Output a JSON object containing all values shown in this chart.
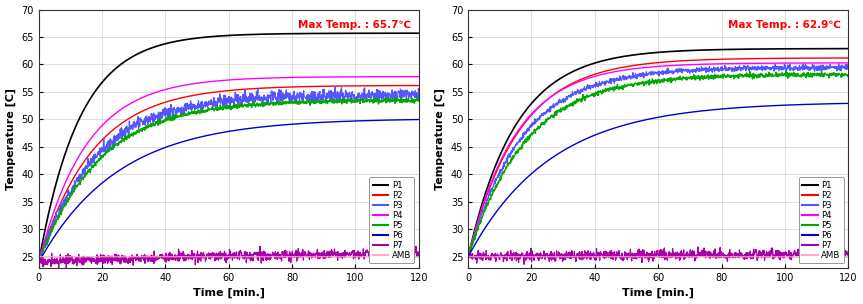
{
  "left": {
    "max_temp_text": "Max Temp. : 65.7℃",
    "series_order": [
      "P1",
      "P2",
      "P3",
      "P4",
      "P5",
      "P6",
      "P7",
      "AMB"
    ],
    "series": {
      "P1": {
        "color": "#000000",
        "final": 65.7,
        "t0": 13,
        "noise": 0.0,
        "lw": 1.2,
        "start": 24.0
      },
      "P2": {
        "color": "#ff0000",
        "final": 56.2,
        "t0": 17,
        "noise": 0.0,
        "lw": 1.0,
        "start": 24.0
      },
      "P3": {
        "color": "#5555ff",
        "final": 54.5,
        "t0": 18,
        "noise": 0.55,
        "lw": 0.9,
        "start": 24.0
      },
      "P4": {
        "color": "#ff00ff",
        "final": 57.8,
        "t0": 15,
        "noise": 0.0,
        "lw": 1.0,
        "start": 24.0
      },
      "P5": {
        "color": "#00aa00",
        "final": 53.5,
        "t0": 19,
        "noise": 0.2,
        "lw": 1.0,
        "start": 24.0
      },
      "P6": {
        "color": "#0000cc",
        "final": 50.2,
        "t0": 25,
        "noise": 0.0,
        "lw": 1.0,
        "start": 24.0
      },
      "P7": {
        "color": "#aa00aa",
        "final": 25.8,
        "t0": 60,
        "noise": 0.45,
        "lw": 0.9,
        "start": 24.0
      },
      "AMB": {
        "color": "#ffaacc",
        "final": 25.0,
        "t0": 999,
        "noise": 0.0,
        "lw": 0.8,
        "start": 25.0
      }
    }
  },
  "right": {
    "max_temp_text": "Max Temp. : 62.9℃",
    "series_order": [
      "P1",
      "P2",
      "P3",
      "P4",
      "P5",
      "P6",
      "P7",
      "AMB"
    ],
    "series": {
      "P1": {
        "color": "#000000",
        "final": 62.9,
        "t0": 15,
        "noise": 0.0,
        "lw": 1.2,
        "start": 25.0
      },
      "P2": {
        "color": "#ff0000",
        "final": 61.2,
        "t0": 16,
        "noise": 0.0,
        "lw": 1.0,
        "start": 25.0
      },
      "P3": {
        "color": "#5555ff",
        "final": 59.5,
        "t0": 17,
        "noise": 0.25,
        "lw": 0.9,
        "start": 25.0
      },
      "P4": {
        "color": "#ff00ff",
        "final": 60.3,
        "t0": 15,
        "noise": 0.0,
        "lw": 1.0,
        "start": 25.0
      },
      "P5": {
        "color": "#00aa00",
        "final": 58.2,
        "t0": 18,
        "noise": 0.2,
        "lw": 1.0,
        "start": 25.0
      },
      "P6": {
        "color": "#0000cc",
        "final": 53.2,
        "t0": 26,
        "noise": 0.0,
        "lw": 1.0,
        "start": 25.0
      },
      "P7": {
        "color": "#aa00aa",
        "final": 25.5,
        "t0": 60,
        "noise": 0.45,
        "lw": 0.9,
        "start": 25.0
      },
      "AMB": {
        "color": "#ffaacc",
        "final": 25.0,
        "t0": 999,
        "noise": 0.0,
        "lw": 0.8,
        "start": 25.0
      }
    }
  },
  "xlabel": "Time [min.]",
  "ylabel": "Temperature [C]",
  "xlim": [
    0,
    120
  ],
  "ylim": [
    23,
    70
  ],
  "yticks": [
    25,
    30,
    35,
    40,
    45,
    50,
    55,
    60,
    65,
    70
  ],
  "xticks": [
    0,
    20,
    40,
    60,
    80,
    100,
    120
  ],
  "grid_color": "#d0d0d0",
  "bg_color": "#ffffff",
  "legend_labels": [
    "P1",
    "P2",
    "P3",
    "P4",
    "P5",
    "P6",
    "P7",
    "AMB"
  ]
}
